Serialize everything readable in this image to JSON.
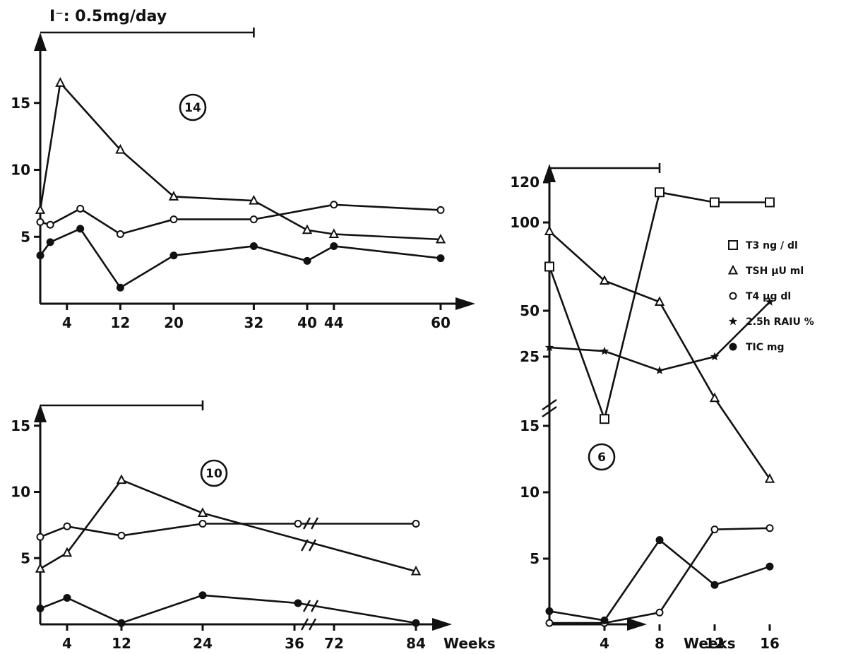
{
  "figure": {
    "dose_label": "I⁻: 0.5mg/day",
    "x_unit": "Weeks",
    "legend": [
      {
        "symbol": "open-square",
        "label": "T3 ng / dl"
      },
      {
        "symbol": "open-triangle",
        "label": "TSH μU  ml"
      },
      {
        "symbol": "open-circle",
        "label": "T4 μg  dl"
      },
      {
        "symbol": "star",
        "label": "2.5h RAIU %"
      },
      {
        "symbol": "filled-circle",
        "label": "TIC mg"
      }
    ]
  },
  "chart_data": [
    {
      "type": "line",
      "patient": "14",
      "xticks": [
        "4",
        "12",
        "20",
        "32",
        "40",
        "44",
        "60"
      ],
      "yticks": [
        "5",
        "10",
        "15"
      ],
      "ylim": [
        0,
        18
      ],
      "xlim": [
        0,
        64
      ],
      "treatment_weeks": [
        0,
        32
      ],
      "series": [
        {
          "marker": "open-triangle",
          "x": [
            0,
            3,
            12,
            20,
            32,
            40,
            44,
            60
          ],
          "y": [
            7.0,
            16.5,
            11.5,
            8.0,
            7.7,
            5.5,
            5.2,
            4.8
          ]
        },
        {
          "marker": "open-circle",
          "x": [
            0,
            1.5,
            6,
            12,
            20,
            32,
            44,
            60
          ],
          "y": [
            6.1,
            5.9,
            7.1,
            5.2,
            6.3,
            6.3,
            7.4,
            7.0
          ]
        },
        {
          "marker": "filled-circle",
          "x": [
            0,
            1.5,
            6,
            12,
            20,
            32,
            40,
            44,
            60
          ],
          "y": [
            3.6,
            4.6,
            5.6,
            1.2,
            3.6,
            4.3,
            3.2,
            4.3,
            3.4
          ]
        }
      ]
    },
    {
      "type": "line",
      "patient": "10",
      "xticks": [
        "4",
        "12",
        "24",
        "36",
        "72",
        "84"
      ],
      "yticks": [
        "5",
        "10",
        "15"
      ],
      "ylim": [
        0,
        16
      ],
      "treatment_weeks": [
        0,
        24
      ],
      "axis_break_between": [
        "36",
        "72"
      ],
      "series": [
        {
          "marker": "open-triangle",
          "x": [
            0,
            4,
            12,
            24,
            84
          ],
          "y": [
            4.2,
            5.4,
            10.9,
            8.4,
            4.0
          ]
        },
        {
          "marker": "open-circle",
          "x": [
            0,
            4,
            12,
            24,
            37,
            84
          ],
          "y": [
            6.6,
            7.4,
            6.7,
            7.6,
            7.6,
            7.6
          ]
        },
        {
          "marker": "filled-circle",
          "x": [
            0,
            4,
            12,
            24,
            37,
            84
          ],
          "y": [
            1.2,
            2.0,
            0.1,
            2.2,
            1.6,
            0.1
          ]
        }
      ]
    },
    {
      "type": "line",
      "patient": "6",
      "xticks": [
        "4",
        "8",
        "12",
        "16"
      ],
      "yticks": [
        "5",
        "10",
        "15",
        "25",
        "50",
        "100",
        "120"
      ],
      "axis_break": "between 15 and 25",
      "treatment_weeks": [
        0,
        8
      ],
      "series": [
        {
          "marker": "open-square",
          "x": [
            0,
            4,
            8,
            12,
            16
          ],
          "y": [
            75,
            16,
            115,
            110,
            110
          ]
        },
        {
          "marker": "open-triangle",
          "x": [
            0,
            4,
            8,
            12,
            16
          ],
          "y": [
            95,
            67,
            55,
            19,
            11
          ]
        },
        {
          "marker": "open-circle",
          "x": [
            0,
            4,
            8,
            12,
            16
          ],
          "y": [
            0.1,
            0.1,
            0.9,
            7.2,
            7.3
          ]
        },
        {
          "marker": "star",
          "x": [
            0,
            4,
            8,
            12,
            16
          ],
          "y": [
            30,
            28,
            23,
            25,
            55
          ]
        },
        {
          "marker": "filled-circle",
          "x": [
            0,
            4,
            8,
            12,
            16
          ],
          "y": [
            1.0,
            0.3,
            6.4,
            3.0,
            4.4
          ]
        }
      ]
    }
  ]
}
